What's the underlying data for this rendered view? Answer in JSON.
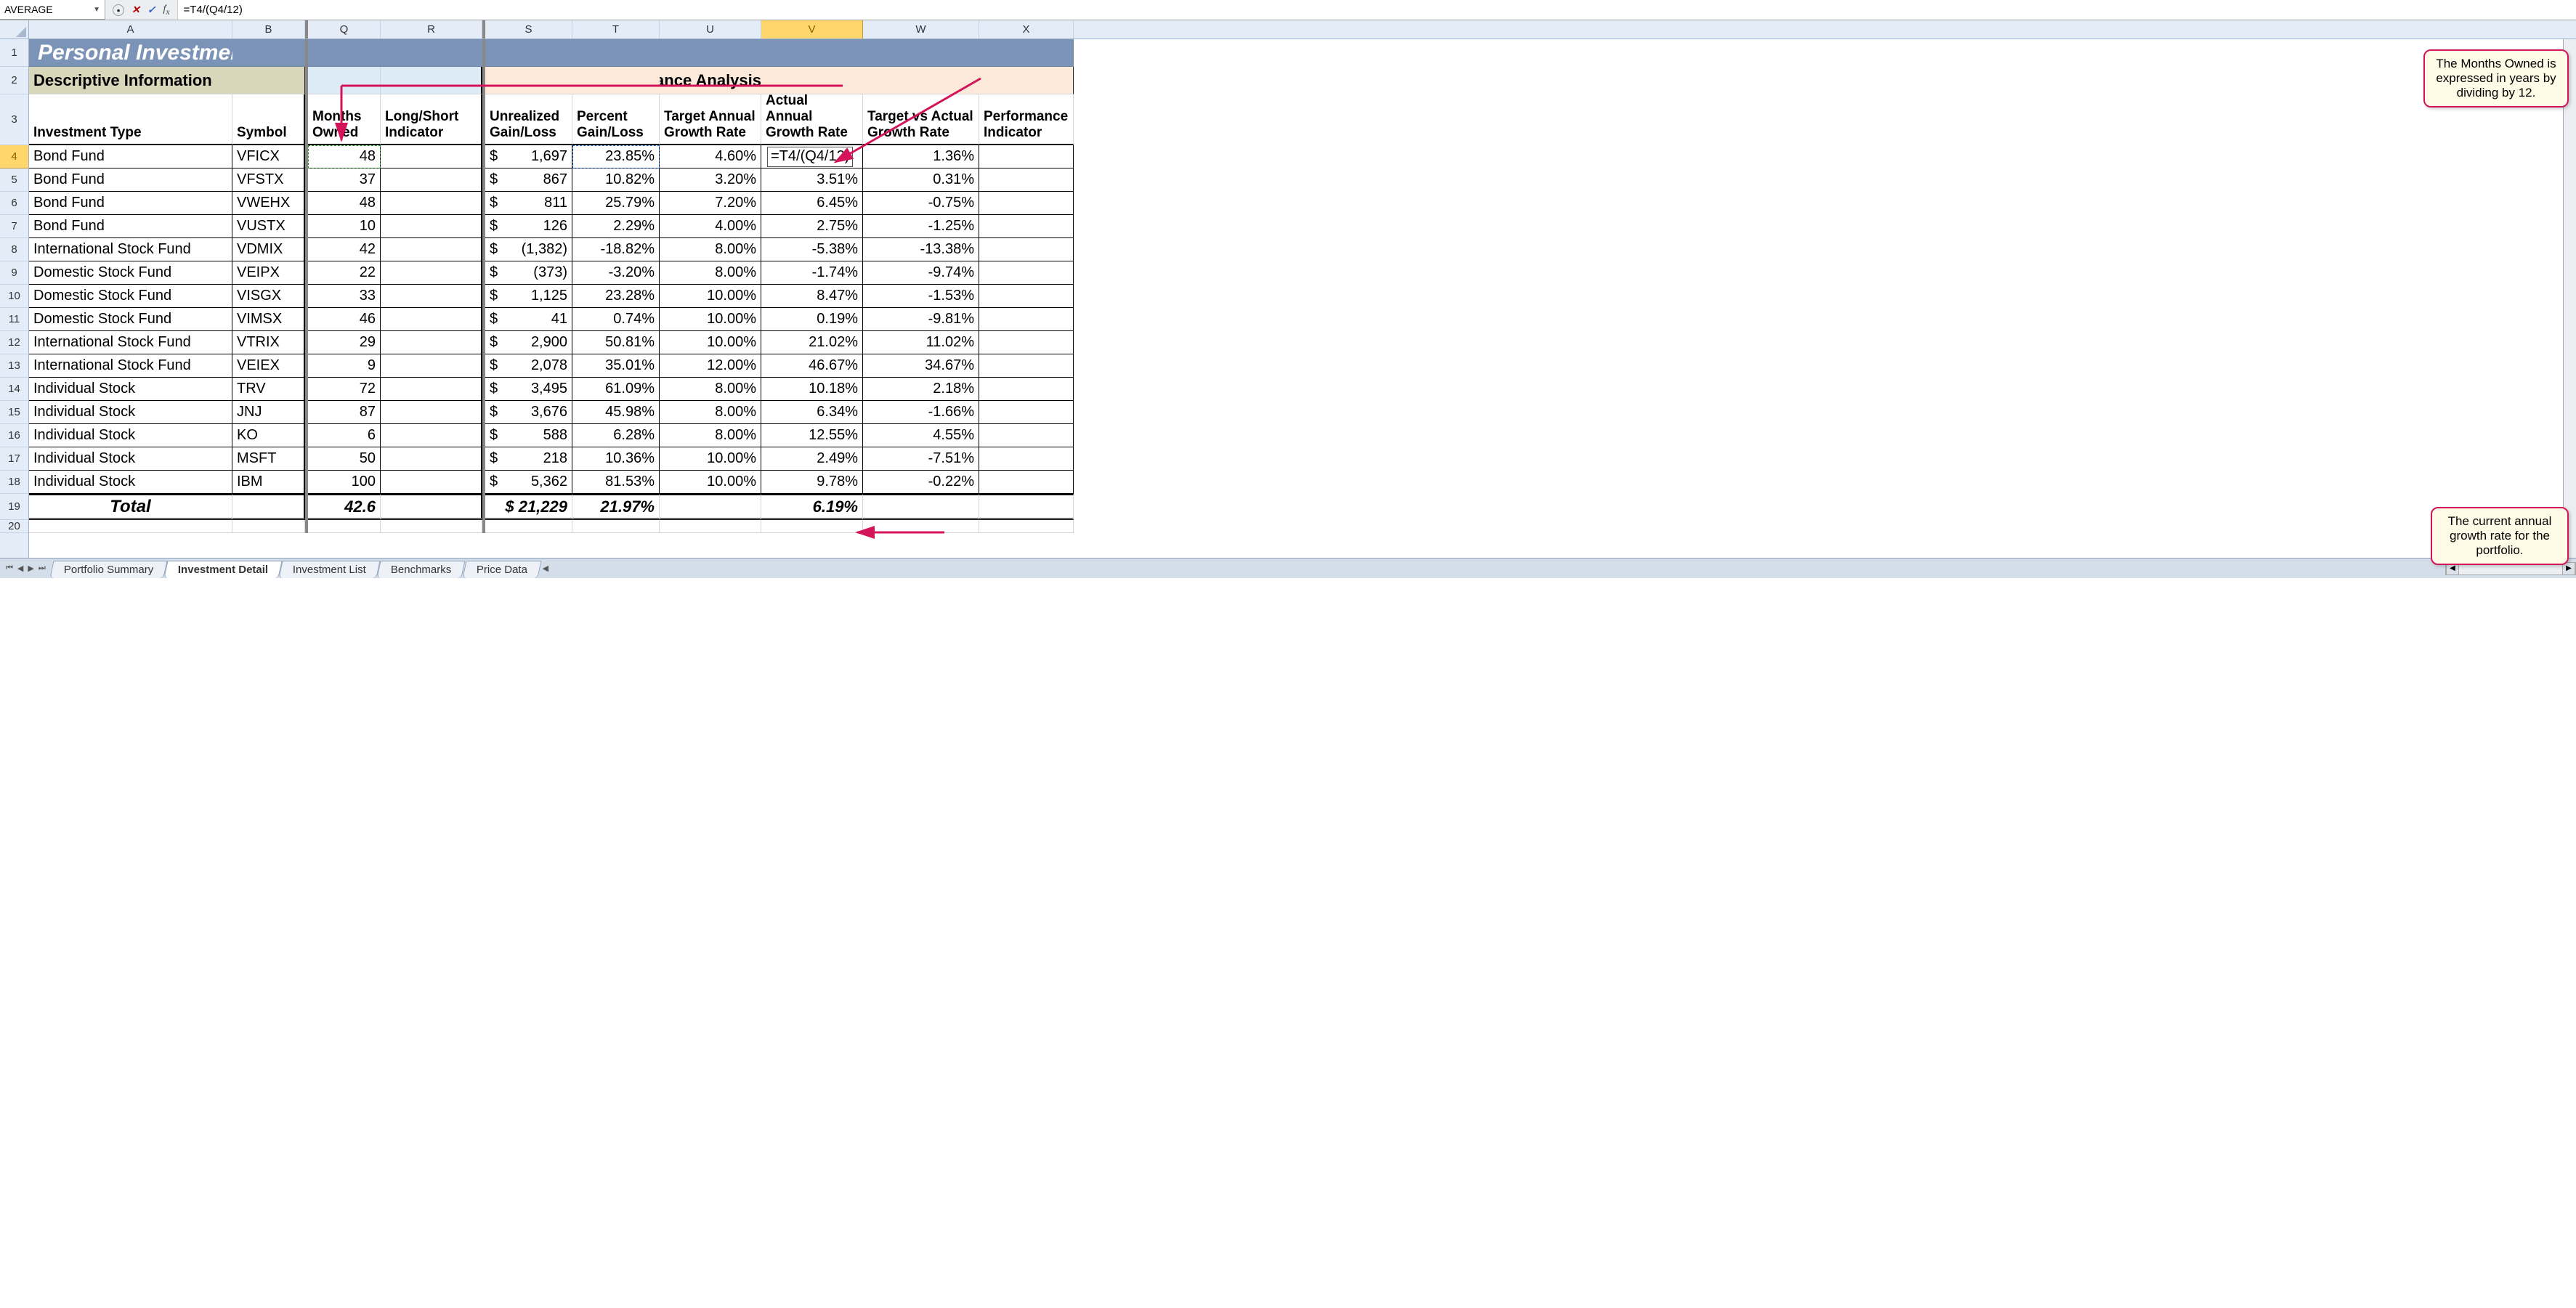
{
  "formula_bar": {
    "name_box": "AVERAGE",
    "formula": "=T4/(Q4/12)"
  },
  "columns": [
    "A",
    "B",
    "Q",
    "R",
    "S",
    "T",
    "U",
    "V",
    "W",
    "X"
  ],
  "row_numbers": [
    1,
    2,
    3,
    4,
    5,
    6,
    7,
    8,
    9,
    10,
    11,
    12,
    13,
    14,
    15,
    16,
    17,
    18,
    19,
    20
  ],
  "title": "Personal Investment",
  "section_left": "Descriptive Information",
  "section_right": "Performance Analysis",
  "headers": {
    "A": "Investment Type",
    "B": "Symbol",
    "Q": "Months Owned",
    "R": "Long/Short Indicator",
    "S": "Unrealized Gain/Loss",
    "T": "Percent Gain/Loss",
    "U": "Target Annual Growth Rate",
    "V": "Actual Annual Growth Rate",
    "W": "Target vs Actual Growth Rate",
    "X": "Performance Indicator"
  },
  "formula_cell": "=T4/(Q4/12)",
  "rows": [
    {
      "type": "Bond Fund",
      "sym": "VFICX",
      "months": "48",
      "gl": "1,697",
      "pct": "23.85%",
      "target": "4.60%",
      "actual": "",
      "diff": "1.36%"
    },
    {
      "type": "Bond Fund",
      "sym": "VFSTX",
      "months": "37",
      "gl": "867",
      "pct": "10.82%",
      "target": "3.20%",
      "actual": "3.51%",
      "diff": "0.31%"
    },
    {
      "type": "Bond Fund",
      "sym": "VWEHX",
      "months": "48",
      "gl": "811",
      "pct": "25.79%",
      "target": "7.20%",
      "actual": "6.45%",
      "diff": "-0.75%"
    },
    {
      "type": "Bond Fund",
      "sym": "VUSTX",
      "months": "10",
      "gl": "126",
      "pct": "2.29%",
      "target": "4.00%",
      "actual": "2.75%",
      "diff": "-1.25%"
    },
    {
      "type": "International Stock Fund",
      "sym": "VDMIX",
      "months": "42",
      "gl": "(1,382)",
      "pct": "-18.82%",
      "target": "8.00%",
      "actual": "-5.38%",
      "diff": "-13.38%"
    },
    {
      "type": "Domestic Stock Fund",
      "sym": "VEIPX",
      "months": "22",
      "gl": "(373)",
      "pct": "-3.20%",
      "target": "8.00%",
      "actual": "-1.74%",
      "diff": "-9.74%"
    },
    {
      "type": "Domestic Stock Fund",
      "sym": "VISGX",
      "months": "33",
      "gl": "1,125",
      "pct": "23.28%",
      "target": "10.00%",
      "actual": "8.47%",
      "diff": "-1.53%"
    },
    {
      "type": "Domestic Stock Fund",
      "sym": "VIMSX",
      "months": "46",
      "gl": "41",
      "pct": "0.74%",
      "target": "10.00%",
      "actual": "0.19%",
      "diff": "-9.81%"
    },
    {
      "type": "International Stock Fund",
      "sym": "VTRIX",
      "months": "29",
      "gl": "2,900",
      "pct": "50.81%",
      "target": "10.00%",
      "actual": "21.02%",
      "diff": "11.02%"
    },
    {
      "type": "International Stock Fund",
      "sym": "VEIEX",
      "months": "9",
      "gl": "2,078",
      "pct": "35.01%",
      "target": "12.00%",
      "actual": "46.67%",
      "diff": "34.67%"
    },
    {
      "type": "Individual Stock",
      "sym": "TRV",
      "months": "72",
      "gl": "3,495",
      "pct": "61.09%",
      "target": "8.00%",
      "actual": "10.18%",
      "diff": "2.18%"
    },
    {
      "type": "Individual Stock",
      "sym": "JNJ",
      "months": "87",
      "gl": "3,676",
      "pct": "45.98%",
      "target": "8.00%",
      "actual": "6.34%",
      "diff": "-1.66%"
    },
    {
      "type": "Individual Stock",
      "sym": "KO",
      "months": "6",
      "gl": "588",
      "pct": "6.28%",
      "target": "8.00%",
      "actual": "12.55%",
      "diff": "4.55%"
    },
    {
      "type": "Individual Stock",
      "sym": "MSFT",
      "months": "50",
      "gl": "218",
      "pct": "10.36%",
      "target": "10.00%",
      "actual": "2.49%",
      "diff": "-7.51%"
    },
    {
      "type": "Individual Stock",
      "sym": "IBM",
      "months": "100",
      "gl": "5,362",
      "pct": "81.53%",
      "target": "10.00%",
      "actual": "9.78%",
      "diff": "-0.22%"
    }
  ],
  "total": {
    "label": "Total",
    "months": "42.6",
    "gl": "$ 21,229",
    "pct": "21.97%",
    "actual": "6.19%"
  },
  "tabs": [
    "Portfolio Summary",
    "Investment Detail",
    "Investment List",
    "Benchmarks",
    "Price Data"
  ],
  "active_tab": 1,
  "callout1": "The Months Owned is expressed in years by dividing by 12.",
  "callout2": "The current annual growth rate for the portfolio."
}
